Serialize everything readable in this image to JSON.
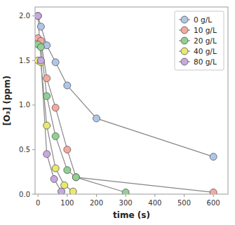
{
  "chart_data": {
    "type": "line",
    "xlabel": "time (s)",
    "ylabel": "[O₃] (ppm)",
    "color": "#888888",
    "marker": "circle",
    "legend": "upper right",
    "grid": false,
    "xlim": [
      -10,
      650
    ],
    "ylim": [
      0,
      2.1
    ],
    "xticks": [
      0,
      100,
      200,
      300,
      400,
      500,
      600
    ],
    "yticks": [
      {
        "value": 0,
        "label": "0.0"
      },
      0.5,
      {
        "value": 1,
        "label": "1.0"
      },
      1.5,
      {
        "value": 2,
        "label": "2.0"
      }
    ],
    "series": [
      {
        "name": "0 g/L",
        "color": "#aec6e8",
        "x": [
          0,
          10,
          30,
          60,
          100,
          200,
          600
        ],
        "values": [
          2.0,
          1.88,
          1.67,
          1.48,
          1.22,
          0.85,
          0.42
        ]
      },
      {
        "name": "10 g/L",
        "color": "#f4a9a0",
        "x": [
          0,
          10,
          30,
          60,
          100,
          130,
          600
        ],
        "values": [
          1.75,
          1.72,
          1.3,
          0.97,
          0.5,
          0.19,
          0.02
        ]
      },
      {
        "name": "20 g/L",
        "color": "#90d090",
        "x": [
          0,
          10,
          30,
          60,
          100,
          130,
          300
        ],
        "values": [
          1.68,
          1.65,
          1.1,
          0.65,
          0.27,
          0.19,
          0.02
        ]
      },
      {
        "name": "40 g/L",
        "color": "#e8e870",
        "x": [
          0,
          10,
          30,
          60,
          90,
          120
        ],
        "values": [
          1.5,
          1.48,
          0.77,
          0.29,
          0.1,
          0.03
        ]
      },
      {
        "name": "80 g/L",
        "color": "#c8a8e0",
        "x": [
          0,
          10,
          30,
          55,
          80
        ],
        "values": [
          2.0,
          1.5,
          0.45,
          0.17,
          0.03
        ]
      }
    ]
  }
}
